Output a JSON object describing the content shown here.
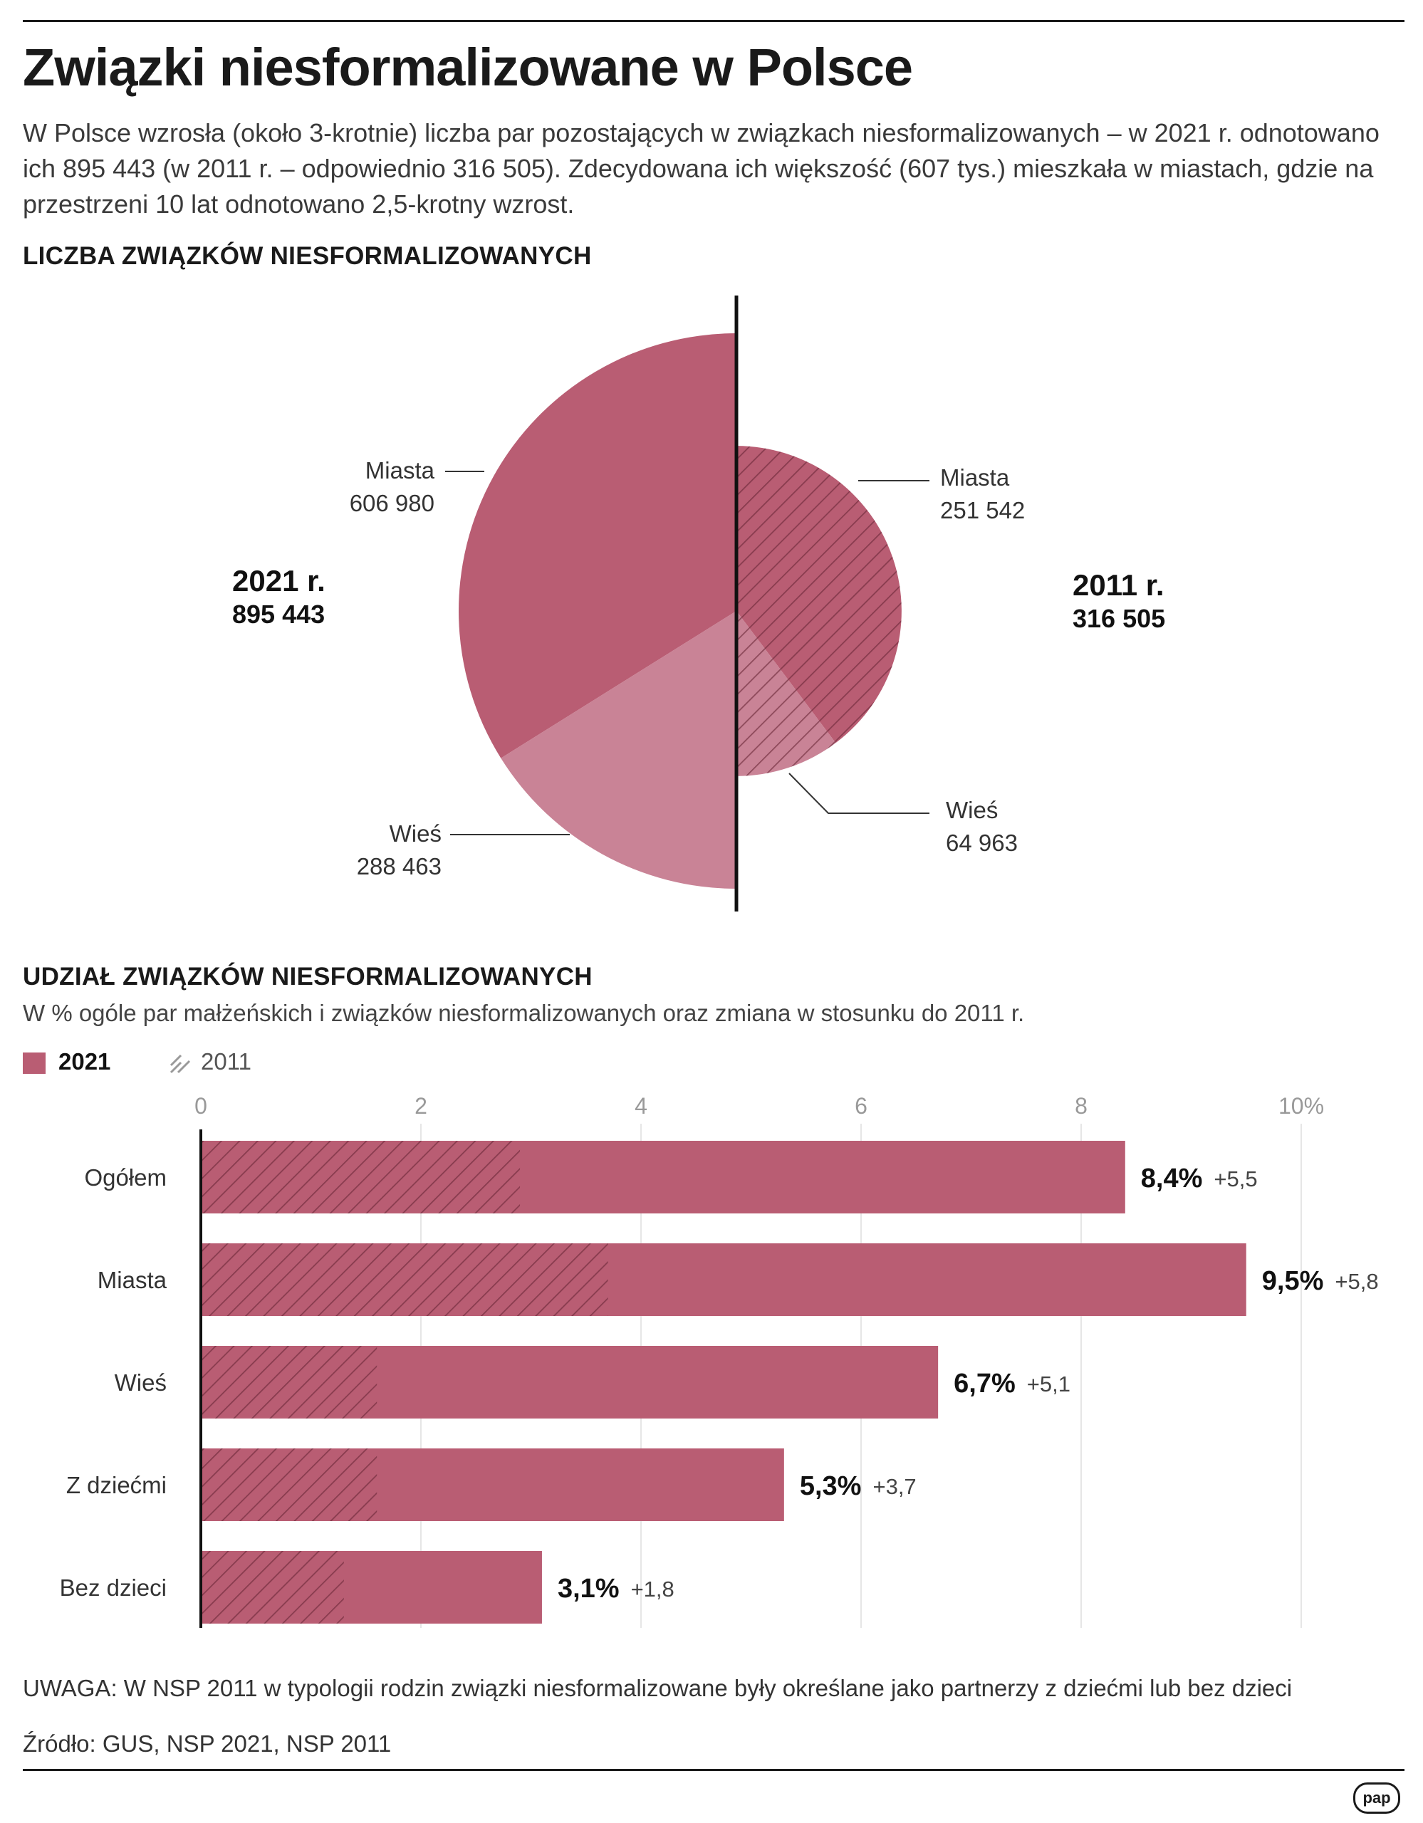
{
  "header": {
    "title": "Związki niesformalizowane w Polsce",
    "lead": "W Polsce wzrosła (około 3-krotnie) liczba par pozostających w związkach niesformalizowanych – w 2021 r. odnotowano ich 895 443 (w 2011 r. – odpowiednio 316 505). Zdecydowana ich większość (607 tys.) mieszkała w miastach, gdzie na przestrzeni 10 lat odnotowano 2,5-krotny wzrost."
  },
  "section1": {
    "title": "LICZBA ZWIĄZKÓW NIESFORMALIZOWANYCH"
  },
  "section2": {
    "title": "UDZIAŁ ZWIĄZKÓW NIESFORMALIZOWANYCH",
    "subtitle": "W % ogóle par małżeńskich i związków niesformalizowanych oraz zmiana w stosunku do 2011 r.",
    "legend_2021": "2021",
    "legend_2011": "2011"
  },
  "colors": {
    "primary": "#b95d73",
    "light": "#c98396",
    "hatch": "#6e2a3a",
    "axis": "#111111",
    "grid": "#e6e6e6",
    "tick_text": "#999999"
  },
  "chart_data": [
    {
      "type": "pie",
      "layout": "two half-pies mirrored on a shared vertical axis",
      "series": [
        {
          "name": "2021 r.",
          "total_label": "895 443",
          "total": 895443,
          "pattern": "solid",
          "slices": [
            {
              "name": "Miasta",
              "value": 606980,
              "value_label": "606 980",
              "color": "#b95d73"
            },
            {
              "name": "Wieś",
              "value": 288463,
              "value_label": "288 463",
              "color": "#c98396"
            }
          ]
        },
        {
          "name": "2011 r.",
          "total_label": "316 505",
          "total": 316505,
          "pattern": "hatched",
          "slices": [
            {
              "name": "Miasta",
              "value": 251542,
              "value_label": "251 542",
              "color": "#b95d73"
            },
            {
              "name": "Wieś",
              "value": 64963,
              "value_label": "64 963",
              "color": "#c98396"
            }
          ]
        }
      ]
    },
    {
      "type": "bar",
      "orientation": "horizontal",
      "title": "UDZIAŁ ZWIĄZKÓW NIESFORMALIZOWANYCH",
      "xlim": [
        0,
        10
      ],
      "ticks": [
        0,
        2,
        4,
        6,
        8,
        10
      ],
      "tick_labels": [
        "0",
        "2",
        "4",
        "6",
        "8",
        "10%"
      ],
      "grid": true,
      "categories": [
        "Ogółem",
        "Miasta",
        "Wieś",
        "Z dziećmi",
        "Bez dzieci"
      ],
      "series": [
        {
          "name": "2021",
          "values": [
            8.4,
            9.5,
            6.7,
            5.3,
            3.1
          ]
        },
        {
          "name": "2011",
          "values": [
            2.9,
            3.7,
            1.6,
            1.6,
            1.3
          ]
        }
      ],
      "value_labels": [
        "8,4%",
        "9,5%",
        "6,7%",
        "5,3%",
        "3,1%"
      ],
      "change_labels": [
        "+5,5",
        "+5,8",
        "+5,1",
        "+3,7",
        "+1,8"
      ]
    }
  ],
  "footer": {
    "note": "UWAGA: W NSP 2011 w typologii rodzin związki niesformalizowane były określane jako partnerzy z dziećmi lub bez dzieci",
    "source": "Źródło: GUS, NSP 2021, NSP 2011",
    "logo": "pap"
  }
}
